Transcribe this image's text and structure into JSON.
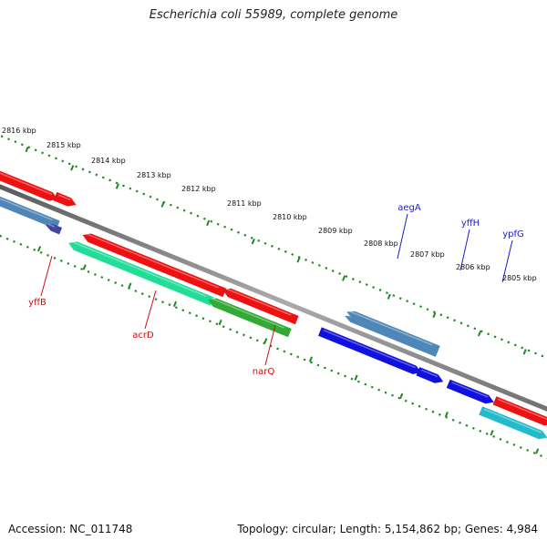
{
  "title": "Escherichia coli 55989, complete genome",
  "footer": {
    "accession": "Accession: NC_011748",
    "summary": "Topology: circular; Length: 5,154,862 bp; Genes: 4,984"
  },
  "ruler": {
    "unit": "kbp",
    "ticks": [
      {
        "kbp": 2816,
        "label": "2816 kbp"
      },
      {
        "kbp": 2815,
        "label": "2815 kbp"
      },
      {
        "kbp": 2814,
        "label": "2814 kbp"
      },
      {
        "kbp": 2813,
        "label": "2813 kbp"
      },
      {
        "kbp": 2812,
        "label": "2812 kbp"
      },
      {
        "kbp": 2811,
        "label": "2811 kbp"
      },
      {
        "kbp": 2810,
        "label": "2810 kbp"
      },
      {
        "kbp": 2809,
        "label": "2809 kbp"
      },
      {
        "kbp": 2808,
        "label": "2808 kbp"
      },
      {
        "kbp": 2807,
        "label": "2807 kbp"
      },
      {
        "kbp": 2806,
        "label": "2806 kbp"
      },
      {
        "kbp": 2805,
        "label": "2805 kbp"
      }
    ]
  },
  "gene_labels": [
    {
      "name": "aegA",
      "color": "#1a1acc"
    },
    {
      "name": "yffH",
      "color": "#1a1acc"
    },
    {
      "name": "ypfG",
      "color": "#1a1acc"
    },
    {
      "name": "yffB",
      "color": "#cc1111"
    },
    {
      "name": "acrD",
      "color": "#cc1111"
    },
    {
      "name": "narQ",
      "color": "#cc1111"
    }
  ],
  "colors": {
    "red": "#ee1111",
    "blue": "#1111dd",
    "steel_blue": "#4f86b8",
    "slate_blue": "#44449a",
    "spring_green": "#22dd99",
    "green": "#33aa33",
    "cyan": "#22bbcc",
    "ruler_green": "#228822",
    "backbone": "#888888"
  }
}
